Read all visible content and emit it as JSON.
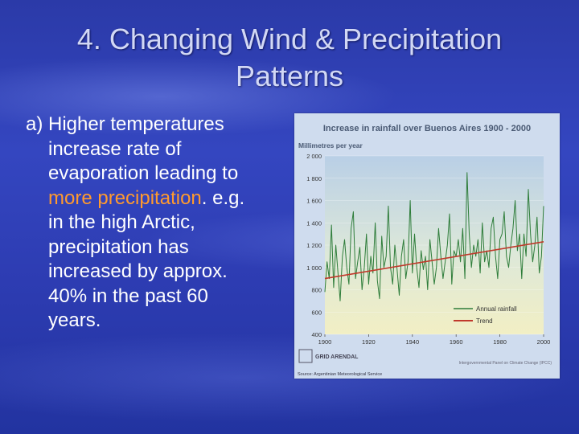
{
  "slide": {
    "title_line1": "4. Changing Wind & Precipitation",
    "title_line2": "Patterns",
    "body_line1": "a) Higher temperatures",
    "body_line2": "increase rate of",
    "body_line3": "evaporation leading to",
    "body_highlight": "more precipitation",
    "body_line4_rest": ". e.g.",
    "body_line5": "in the high Arctic,",
    "body_line6": "precipitation has",
    "body_line7": "increased by approx.",
    "body_line8": "40% in the past 60",
    "body_line9": "years."
  },
  "colors": {
    "highlight": "#ff9a2e",
    "annual_rainfall": "#2e7d3a",
    "trend": "#c0392b"
  },
  "chart_data": {
    "type": "line",
    "title": "Increase in rainfall over Buenos Aires 1900 - 2000",
    "ylabel": "Millimetres per year",
    "xlim": [
      1900,
      2000
    ],
    "ylim": [
      400,
      2000
    ],
    "xticks": [
      "1900",
      "1920",
      "1940",
      "1960",
      "1980",
      "2000"
    ],
    "yticks": [
      "400",
      "600",
      "800",
      "1 000",
      "1 200",
      "1 400",
      "1 600",
      "1 800",
      "2 000"
    ],
    "legend": [
      "Annual rainfall",
      "Trend"
    ],
    "legend_position": "bottom-right",
    "series": [
      {
        "name": "Annual rainfall",
        "x": [
          1900,
          1901,
          1902,
          1903,
          1904,
          1905,
          1906,
          1907,
          1908,
          1909,
          1910,
          1911,
          1912,
          1913,
          1914,
          1915,
          1916,
          1917,
          1918,
          1919,
          1920,
          1921,
          1922,
          1923,
          1924,
          1925,
          1926,
          1927,
          1928,
          1929,
          1930,
          1931,
          1932,
          1933,
          1934,
          1935,
          1936,
          1937,
          1938,
          1939,
          1940,
          1941,
          1942,
          1943,
          1944,
          1945,
          1946,
          1947,
          1948,
          1949,
          1950,
          1951,
          1952,
          1953,
          1954,
          1955,
          1956,
          1957,
          1958,
          1959,
          1960,
          1961,
          1962,
          1963,
          1964,
          1965,
          1966,
          1967,
          1968,
          1969,
          1970,
          1971,
          1972,
          1973,
          1974,
          1975,
          1976,
          1977,
          1978,
          1979,
          1980,
          1981,
          1982,
          1983,
          1984,
          1985,
          1986,
          1987,
          1988,
          1989,
          1990,
          1991,
          1992,
          1993,
          1994,
          1995,
          1996,
          1997,
          1998,
          1999,
          2000
        ],
        "values": [
          780,
          1050,
          900,
          1380,
          820,
          1200,
          950,
          700,
          1100,
          1250,
          1000,
          850,
          1350,
          1500,
          900,
          1050,
          1180,
          800,
          1000,
          1300,
          850,
          1100,
          950,
          1400,
          880,
          720,
          1280,
          1000,
          1100,
          1550,
          1000,
          850,
          1200,
          980,
          750,
          1100,
          1250,
          900,
          1050,
          1600,
          950,
          1300,
          1000,
          820,
          1150,
          980,
          1100,
          800,
          1250,
          1050,
          850,
          1000,
          1350,
          1100,
          900,
          1050,
          1200,
          1480,
          850,
          1150,
          1100,
          1250,
          1050,
          1350,
          900,
          1850,
          1300,
          1000,
          1200,
          1100,
          1250,
          950,
          1400,
          1050,
          1150,
          1000,
          1350,
          1450,
          1100,
          900,
          1250,
          1300,
          1500,
          1100,
          1000,
          1200,
          1350,
          1600,
          1150,
          1300,
          900,
          1300,
          1100,
          1700,
          1300,
          1050,
          1200,
          1450,
          950,
          1100,
          1550
        ]
      },
      {
        "name": "Trend",
        "x": [
          1900,
          2000
        ],
        "values": [
          900,
          1230
        ]
      }
    ],
    "footer": {
      "logo_text": "GRID ARENDAL",
      "credit": "Intergovernmental Panel on Climate Change (IPCC)",
      "source": "Source: Argentinian Meteorological Service"
    }
  }
}
